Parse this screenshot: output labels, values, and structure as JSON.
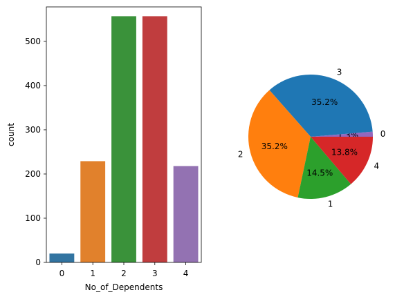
{
  "chart_data": [
    {
      "type": "bar",
      "xlabel": "No_of_Dependents",
      "ylabel": "count",
      "categories": [
        "0",
        "1",
        "2",
        "3",
        "4"
      ],
      "values": [
        20,
        229,
        557,
        557,
        218
      ],
      "colors": [
        "#3274a1",
        "#e1812c",
        "#3a923a",
        "#c03d3e",
        "#9372b2"
      ],
      "ylim": [
        0,
        578
      ],
      "yticks": [
        0,
        100,
        200,
        300,
        400,
        500
      ],
      "grid": false,
      "legend": "none"
    },
    {
      "type": "pie",
      "start_angle_deg": 0,
      "direction": "counterclockwise",
      "slices": [
        {
          "label": "0",
          "pct": 1.3,
          "pct_label": "1.3%",
          "color": "#9467bd"
        },
        {
          "label": "3",
          "pct": 35.2,
          "pct_label": "35.2%",
          "color": "#1f77b4"
        },
        {
          "label": "2",
          "pct": 35.2,
          "pct_label": "35.2%",
          "color": "#ff7f0e"
        },
        {
          "label": "1",
          "pct": 14.5,
          "pct_label": "14.5%",
          "color": "#2ca02c"
        },
        {
          "label": "4",
          "pct": 13.8,
          "pct_label": "13.8%",
          "color": "#d62728"
        }
      ],
      "legend": "none"
    }
  ]
}
